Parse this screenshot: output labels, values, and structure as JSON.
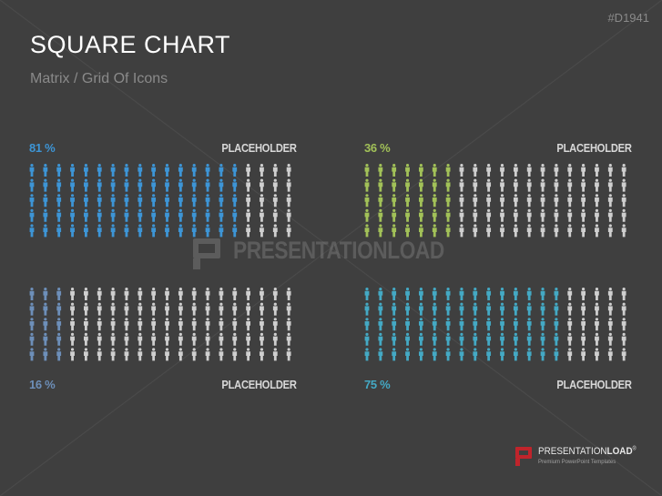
{
  "slide": {
    "title": "SQUARE CHART",
    "subtitle": "Matrix / Grid Of Icons",
    "code": "#D1941"
  },
  "colors": {
    "background": "#3f3f3f",
    "inactive": "#cfcfcf",
    "label": "#d8d8d8"
  },
  "chart_data": [
    {
      "type": "table",
      "icon": "person-icon",
      "rows": 5,
      "columns": 20,
      "value": 81,
      "percent_label": "81 %",
      "label": "PLACEHOLDER",
      "color": "#3d95d6",
      "label_position": "top"
    },
    {
      "type": "table",
      "icon": "person-icon",
      "rows": 5,
      "columns": 20,
      "value": 36,
      "percent_label": "36 %",
      "label": "PLACEHOLDER",
      "color": "#a2c158",
      "label_position": "top"
    },
    {
      "type": "table",
      "icon": "person-icon",
      "rows": 5,
      "columns": 20,
      "value": 16,
      "percent_label": "16 %",
      "label": "PLACEHOLDER",
      "color": "#6d8fb9",
      "label_position": "bottom"
    },
    {
      "type": "table",
      "icon": "person-icon",
      "rows": 5,
      "columns": 20,
      "value": 75,
      "percent_label": "75 %",
      "label": "PLACEHOLDER",
      "color": "#44a9c4",
      "label_position": "bottom"
    }
  ],
  "watermark": {
    "text": "PRESENTATIONLOAD"
  },
  "logo": {
    "brand_regular": "PRESENTATION",
    "brand_bold": "LOAD",
    "mark": "®",
    "tagline": "Premium PowerPoint Templates"
  }
}
